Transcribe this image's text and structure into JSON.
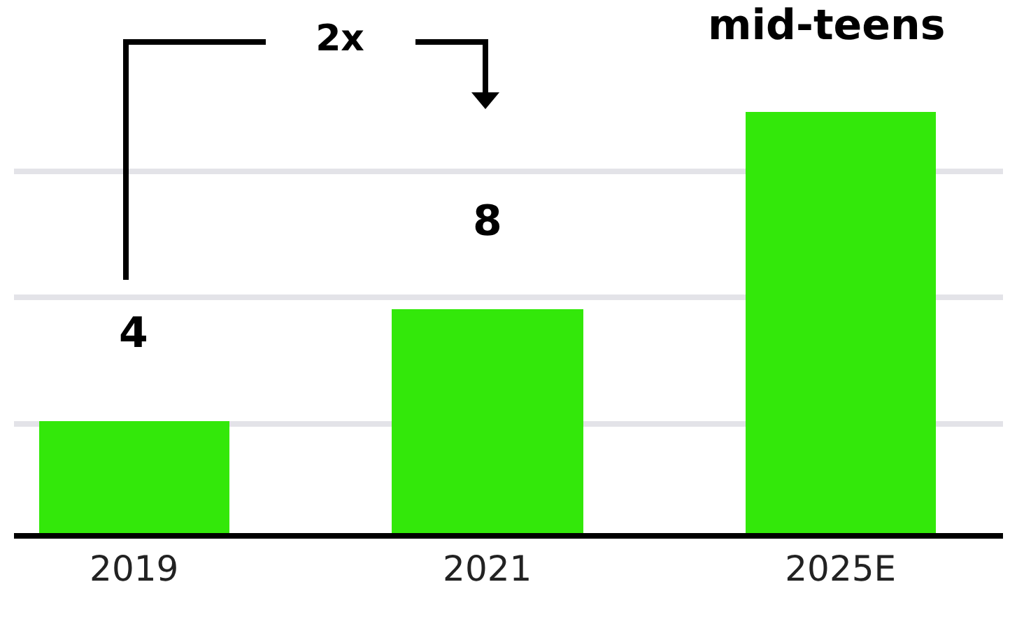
{
  "chart_data": {
    "type": "bar",
    "categories": [
      "2019",
      "2021",
      "2025E"
    ],
    "values": [
      4,
      8,
      15
    ],
    "value_labels": [
      "4",
      "8",
      "mid-teens"
    ],
    "color": "#33e80a",
    "yticks": [
      {
        "value": 3.9,
        "label": null
      },
      {
        "value": 8.4,
        "label": null
      },
      {
        "value": 12.9,
        "label": null
      }
    ],
    "grid": "y",
    "tick_labels": "x",
    "annotations": [
      "2x"
    ]
  }
}
